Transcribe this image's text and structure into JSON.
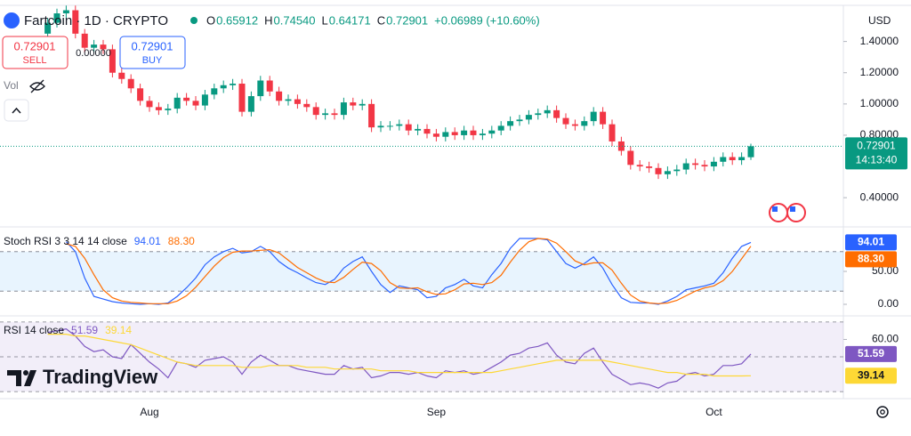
{
  "chart_data": [
    {
      "type": "candlestick",
      "categories": [
        null,
        null,
        null,
        null,
        null,
        null,
        null,
        null,
        null,
        null,
        null,
        "Aug",
        null,
        null,
        null,
        null,
        null,
        null,
        null,
        null,
        null,
        null,
        null,
        null,
        null,
        null,
        null,
        null,
        null,
        null,
        null,
        null,
        null,
        null,
        null,
        null,
        null,
        null,
        null,
        null,
        null,
        null,
        "Sep",
        null,
        null,
        null,
        null,
        null,
        null,
        null,
        null,
        null,
        null,
        null,
        null,
        null,
        null,
        null,
        null,
        null,
        null,
        null,
        null,
        null,
        null,
        null,
        null,
        null,
        null,
        null,
        null,
        null,
        "Oct",
        null,
        null,
        null,
        null
      ],
      "open": [
        1.45,
        1.52,
        1.58,
        1.6,
        1.45,
        1.36,
        1.38,
        1.35,
        1.2,
        1.16,
        1.1,
        1.02,
        0.98,
        0.96,
        0.97,
        1.04,
        1.02,
        0.99,
        1.06,
        1.1,
        1.12,
        1.13,
        0.95,
        1.05,
        1.15,
        1.08,
        1.02,
        1.03,
        1.0,
        0.98,
        0.93,
        0.94,
        0.93,
        1.01,
        0.99,
        1.0,
        0.85,
        0.86,
        0.86,
        0.87,
        0.83,
        0.84,
        0.81,
        0.79,
        0.82,
        0.8,
        0.83,
        0.8,
        0.81,
        0.83,
        0.86,
        0.89,
        0.9,
        0.93,
        0.94,
        0.96,
        0.91,
        0.87,
        0.86,
        0.89,
        0.95,
        0.87,
        0.76,
        0.7,
        0.61,
        0.6,
        0.59,
        0.55,
        0.57,
        0.58,
        0.62,
        0.61,
        0.6,
        0.63,
        0.66,
        0.64,
        0.65912
      ],
      "high": [
        1.55,
        1.61,
        1.63,
        1.63,
        1.48,
        1.41,
        1.41,
        1.38,
        1.23,
        1.19,
        1.13,
        1.05,
        1.01,
        1.0,
        1.07,
        1.07,
        1.05,
        1.09,
        1.13,
        1.15,
        1.16,
        1.16,
        1.08,
        1.18,
        1.18,
        1.11,
        1.06,
        1.06,
        1.03,
        1.01,
        0.97,
        0.97,
        1.04,
        1.04,
        1.03,
        1.03,
        0.89,
        0.89,
        0.9,
        0.9,
        0.87,
        0.87,
        0.84,
        0.85,
        0.85,
        0.86,
        0.86,
        0.84,
        0.86,
        0.89,
        0.92,
        0.93,
        0.96,
        0.97,
        0.99,
        0.99,
        0.94,
        0.9,
        0.92,
        0.98,
        0.98,
        0.9,
        0.79,
        0.73,
        0.64,
        0.63,
        0.62,
        0.6,
        0.61,
        0.65,
        0.65,
        0.64,
        0.66,
        0.69,
        0.69,
        0.69,
        0.7454
      ],
      "low": [
        1.42,
        1.49,
        1.55,
        1.42,
        1.33,
        1.33,
        1.32,
        1.17,
        1.13,
        1.07,
        0.99,
        0.95,
        0.93,
        0.93,
        0.94,
        0.99,
        0.96,
        0.96,
        1.03,
        1.07,
        1.09,
        0.92,
        0.92,
        1.02,
        1.05,
        0.99,
        0.99,
        0.97,
        0.95,
        0.9,
        0.9,
        0.9,
        0.9,
        0.96,
        0.96,
        0.82,
        0.82,
        0.83,
        0.83,
        0.8,
        0.8,
        0.78,
        0.76,
        0.76,
        0.77,
        0.77,
        0.77,
        0.77,
        0.78,
        0.8,
        0.83,
        0.86,
        0.87,
        0.9,
        0.91,
        0.88,
        0.84,
        0.83,
        0.83,
        0.86,
        0.84,
        0.73,
        0.67,
        0.58,
        0.57,
        0.56,
        0.52,
        0.52,
        0.54,
        0.55,
        0.58,
        0.57,
        0.57,
        0.6,
        0.61,
        0.61,
        0.64171
      ],
      "close": [
        1.52,
        1.58,
        1.6,
        1.45,
        1.36,
        1.38,
        1.35,
        1.2,
        1.16,
        1.1,
        1.02,
        0.98,
        0.96,
        0.97,
        1.04,
        1.02,
        0.99,
        1.06,
        1.1,
        1.12,
        1.13,
        0.95,
        1.05,
        1.15,
        1.08,
        1.02,
        1.03,
        1.0,
        0.98,
        0.93,
        0.94,
        0.93,
        1.01,
        0.99,
        1.0,
        0.85,
        0.86,
        0.86,
        0.87,
        0.83,
        0.84,
        0.81,
        0.79,
        0.82,
        0.8,
        0.83,
        0.8,
        0.81,
        0.83,
        0.86,
        0.89,
        0.9,
        0.93,
        0.94,
        0.96,
        0.91,
        0.87,
        0.86,
        0.89,
        0.95,
        0.87,
        0.76,
        0.7,
        0.61,
        0.6,
        0.59,
        0.55,
        0.57,
        0.58,
        0.62,
        0.61,
        0.6,
        0.63,
        0.66,
        0.64,
        0.66,
        0.72901
      ],
      "up_color": "#089981",
      "down_color": "#f23645",
      "ylim": [
        0.23,
        1.62
      ],
      "yticks": [
        {
          "value": 0.4,
          "label": "0.40000"
        },
        {
          "value": 0.8,
          "label": "0.80000"
        },
        {
          "value": 1.0,
          "label": "1.00000"
        },
        {
          "value": 1.2,
          "label": "1.20000"
        },
        {
          "value": 1.4,
          "label": "1.40000"
        }
      ],
      "grid": false
    },
    {
      "type": "line",
      "title": "Stoch RSI 3 3 14 14 close",
      "series": [
        {
          "color": "#2962ff",
          "values": [
            null,
            null,
            95,
            80,
            40,
            12,
            8,
            4,
            2,
            1,
            0,
            1,
            0,
            2,
            12,
            25,
            40,
            60,
            72,
            80,
            85,
            78,
            80,
            88,
            80,
            65,
            55,
            48,
            40,
            33,
            30,
            38,
            55,
            65,
            72,
            50,
            30,
            18,
            28,
            25,
            22,
            10,
            12,
            25,
            30,
            38,
            28,
            25,
            45,
            62,
            85,
            100,
            100,
            100,
            98,
            80,
            62,
            55,
            62,
            72,
            55,
            30,
            10,
            3,
            2,
            2,
            0,
            5,
            12,
            22,
            25,
            28,
            32,
            48,
            70,
            88,
            94.01
          ]
        },
        {
          "color": "#ff6d00",
          "values": [
            null,
            null,
            92,
            88,
            70,
            45,
            22,
            10,
            5,
            3,
            2,
            1,
            1,
            1,
            5,
            13,
            26,
            42,
            58,
            71,
            79,
            81,
            81,
            82,
            83,
            78,
            67,
            56,
            48,
            40,
            34,
            33,
            41,
            53,
            64,
            62,
            51,
            33,
            25,
            24,
            25,
            19,
            15,
            16,
            22,
            31,
            32,
            30,
            33,
            44,
            64,
            82,
            95,
            100,
            99,
            93,
            80,
            66,
            60,
            63,
            63,
            52,
            32,
            14,
            5,
            2,
            1,
            2,
            6,
            13,
            20,
            25,
            28,
            36,
            50,
            69,
            88.3
          ],
          "value_labels": [
            null,
            null,
            null,
            null,
            null,
            null,
            null,
            null,
            null,
            null,
            null,
            null,
            null,
            null,
            null,
            null,
            null,
            null,
            null,
            null,
            null,
            null,
            null,
            null,
            null,
            null,
            null,
            null,
            null,
            null,
            null,
            null,
            null,
            null,
            null,
            null,
            null,
            null,
            null,
            null,
            null,
            null,
            null,
            null,
            null,
            null,
            null,
            null,
            null,
            null,
            null,
            null,
            null,
            null,
            null,
            null,
            null,
            null,
            null,
            null,
            null,
            null,
            null,
            null,
            null,
            null,
            null,
            null,
            null,
            null,
            null,
            null,
            null,
            null,
            null,
            null,
            "88.30"
          ]
        }
      ],
      "levels": [
        20,
        80
      ],
      "band_color": "#2196f3",
      "ylim": [
        -13.5,
        113.5
      ],
      "yticks": [
        {
          "value": 0,
          "label": "0.00"
        },
        {
          "value": 50,
          "label": "50.00"
        }
      ]
    },
    {
      "type": "line",
      "title": "RSI 14 close",
      "series": [
        {
          "color": "#7e57c2",
          "values": [
            64,
            65,
            66,
            62,
            56,
            53,
            54,
            50,
            49,
            57,
            52,
            47,
            43,
            38,
            47,
            46,
            44,
            48,
            49,
            50,
            47,
            40,
            47,
            51,
            48,
            45,
            45,
            43,
            42,
            41,
            40,
            40,
            45,
            43,
            44,
            38,
            39,
            41,
            41,
            40,
            41,
            39,
            38,
            42,
            41,
            42,
            40,
            41,
            44,
            47,
            51,
            52,
            55,
            56,
            58,
            51,
            47,
            46,
            52,
            55,
            47,
            40,
            37,
            34,
            35,
            34,
            32,
            35,
            36,
            40,
            41,
            39,
            40,
            45,
            45,
            46,
            51.59
          ]
        },
        {
          "color": "#fdd835",
          "values": [
            63,
            63,
            63,
            62,
            62,
            61,
            60,
            59,
            58,
            57,
            55,
            53,
            51,
            49,
            47,
            46,
            45,
            45,
            45,
            45,
            45,
            44,
            44,
            44,
            45,
            45,
            45,
            45,
            44,
            44,
            44,
            43,
            43,
            43,
            43,
            43,
            42,
            42,
            42,
            42,
            41,
            41,
            41,
            41,
            41,
            41,
            41,
            41,
            41,
            42,
            43,
            44,
            45,
            46,
            47,
            48,
            48,
            48,
            48,
            48,
            48,
            47,
            46,
            45,
            44,
            43,
            42,
            41,
            41,
            40,
            40,
            40,
            39,
            39,
            39,
            39,
            39.14
          ]
        }
      ],
      "levels": [
        30,
        50,
        70
      ],
      "band_color": "#7e57c2",
      "ylim": [
        27,
        72
      ],
      "yticks": [
        {
          "value": 60,
          "label": "60.00"
        }
      ]
    }
  ],
  "ui": {
    "symbol": "Fartcoin · 1D · CRYPTO",
    "stats": [
      {
        "key": "O",
        "value": "0.65912"
      },
      {
        "key": "H",
        "value": "0.74540"
      },
      {
        "key": "L",
        "value": "0.64171"
      },
      {
        "key": "C",
        "value": "0.72901"
      }
    ],
    "change": "+0.06989 (+10.60%)",
    "sell": {
      "price": "0.72901",
      "label": "SELL"
    },
    "spread": "0.00000",
    "buy": {
      "price": "0.72901",
      "label": "BUY"
    },
    "volume": "Vol",
    "currency": "USD",
    "countdown": "14:13:40",
    "watermark": "TradingView"
  }
}
